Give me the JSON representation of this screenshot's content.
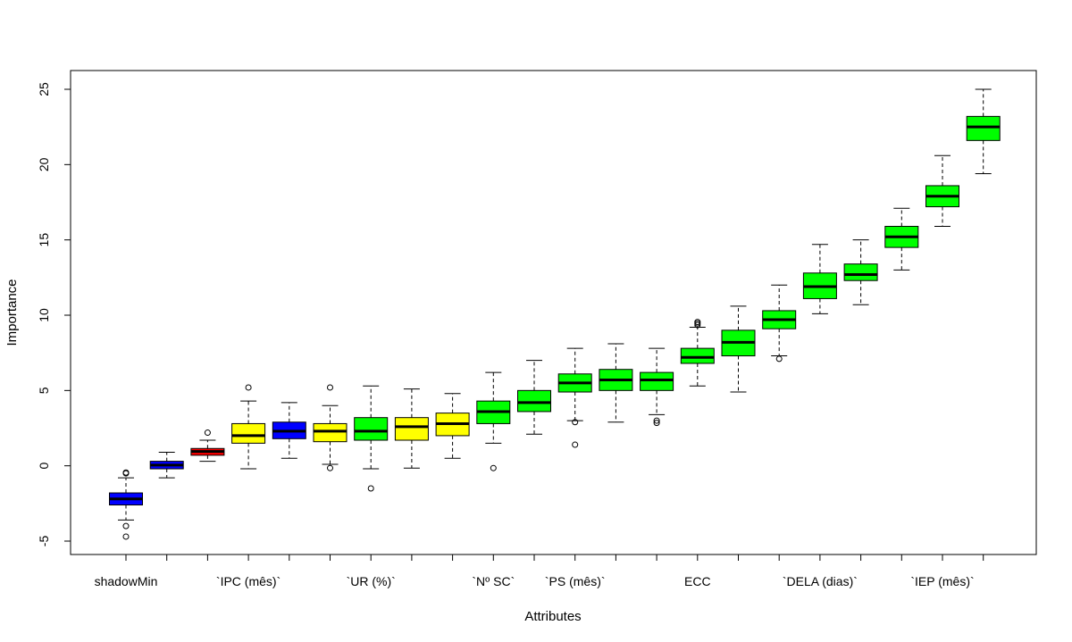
{
  "chart_data": {
    "type": "boxplot",
    "xlabel": "Attributes",
    "ylabel": "Importance",
    "ylim": [
      -6,
      26
    ],
    "yticks": [
      -5,
      0,
      5,
      10,
      15,
      20,
      25
    ],
    "grid": false,
    "legend": "none",
    "colors": {
      "shadow": "#0000ff",
      "rejected": "#ff0000",
      "tentative": "#ffff00",
      "confirmed": "#00ff00",
      "stroke": "#000000"
    },
    "boxes": [
      {
        "label": "shadowMin",
        "status": "shadow",
        "min": -3.6,
        "q1": -2.6,
        "median": -2.2,
        "q3": -1.8,
        "max": -0.8,
        "outliers": [
          -0.5,
          -0.45,
          -4.0,
          -4.7
        ]
      },
      {
        "label": "",
        "status": "shadow",
        "min": -0.8,
        "q1": -0.2,
        "median": 0.05,
        "q3": 0.3,
        "max": 0.9,
        "outliers": []
      },
      {
        "label": "",
        "status": "rejected",
        "min": 0.3,
        "q1": 0.7,
        "median": 0.95,
        "q3": 1.15,
        "max": 1.7,
        "outliers": [
          2.2
        ]
      },
      {
        "label": "`IPC (mês)`",
        "status": "tentative",
        "min": -0.2,
        "q1": 1.5,
        "median": 2.0,
        "q3": 2.8,
        "max": 4.3,
        "outliers": [
          5.2
        ]
      },
      {
        "label": "",
        "status": "shadow",
        "min": 0.5,
        "q1": 1.8,
        "median": 2.3,
        "q3": 2.9,
        "max": 4.2,
        "outliers": []
      },
      {
        "label": "",
        "status": "tentative",
        "min": 0.1,
        "q1": 1.6,
        "median": 2.3,
        "q3": 2.8,
        "max": 4.0,
        "outliers": [
          5.2,
          -0.15
        ]
      },
      {
        "label": "`UR (%)`",
        "status": "confirmed",
        "min": -0.2,
        "q1": 1.7,
        "median": 2.3,
        "q3": 3.2,
        "max": 5.3,
        "outliers": [
          -1.5
        ]
      },
      {
        "label": "",
        "status": "tentative",
        "min": -0.15,
        "q1": 1.7,
        "median": 2.6,
        "q3": 3.2,
        "max": 5.1,
        "outliers": []
      },
      {
        "label": "",
        "status": "tentative",
        "min": 0.5,
        "q1": 2.0,
        "median": 2.8,
        "q3": 3.5,
        "max": 4.8,
        "outliers": []
      },
      {
        "label": "`Nº SC`",
        "status": "confirmed",
        "min": 1.5,
        "q1": 2.8,
        "median": 3.6,
        "q3": 4.3,
        "max": 6.2,
        "outliers": [
          -0.15
        ]
      },
      {
        "label": "",
        "status": "confirmed",
        "min": 2.1,
        "q1": 3.6,
        "median": 4.2,
        "q3": 5.0,
        "max": 7.0,
        "outliers": []
      },
      {
        "label": "`PS (mês)`",
        "status": "confirmed",
        "min": 3.0,
        "q1": 4.9,
        "median": 5.5,
        "q3": 6.1,
        "max": 7.8,
        "outliers": [
          2.9,
          1.4
        ]
      },
      {
        "label": "",
        "status": "confirmed",
        "min": 2.9,
        "q1": 5.0,
        "median": 5.7,
        "q3": 6.4,
        "max": 8.1,
        "outliers": []
      },
      {
        "label": "",
        "status": "confirmed",
        "min": 3.4,
        "q1": 5.0,
        "median": 5.7,
        "q3": 6.2,
        "max": 7.8,
        "outliers": [
          3.0,
          2.85
        ]
      },
      {
        "label": "ECC",
        "status": "confirmed",
        "min": 5.3,
        "q1": 6.8,
        "median": 7.2,
        "q3": 7.8,
        "max": 9.2,
        "outliers": [
          9.35,
          9.45,
          9.55
        ]
      },
      {
        "label": "",
        "status": "confirmed",
        "min": 4.9,
        "q1": 7.3,
        "median": 8.2,
        "q3": 9.0,
        "max": 10.6,
        "outliers": []
      },
      {
        "label": "",
        "status": "confirmed",
        "min": 7.3,
        "q1": 9.1,
        "median": 9.7,
        "q3": 10.3,
        "max": 12.0,
        "outliers": [
          7.1
        ]
      },
      {
        "label": "`DELA (dias)`",
        "status": "confirmed",
        "min": 10.1,
        "q1": 11.1,
        "median": 11.9,
        "q3": 12.8,
        "max": 14.7,
        "outliers": []
      },
      {
        "label": "",
        "status": "confirmed",
        "min": 10.7,
        "q1": 12.3,
        "median": 12.7,
        "q3": 13.4,
        "max": 15.0,
        "outliers": []
      },
      {
        "label": "",
        "status": "confirmed",
        "min": 13.0,
        "q1": 14.5,
        "median": 15.2,
        "q3": 15.9,
        "max": 17.1,
        "outliers": []
      },
      {
        "label": "`IEP (mês)`",
        "status": "confirmed",
        "min": 15.9,
        "q1": 17.2,
        "median": 17.9,
        "q3": 18.6,
        "max": 20.6,
        "outliers": []
      },
      {
        "label": "",
        "status": "confirmed",
        "min": 19.4,
        "q1": 21.6,
        "median": 22.5,
        "q3": 23.2,
        "max": 25.0,
        "outliers": []
      }
    ]
  }
}
